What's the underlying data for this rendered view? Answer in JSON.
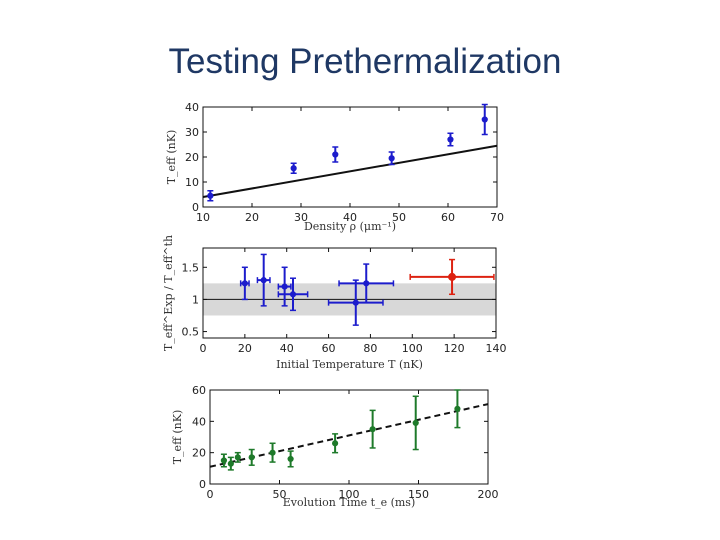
{
  "slide": {
    "title": "Testing Prethermalization"
  },
  "colors": {
    "blue": "#1c1ccc",
    "red": "#dd2211",
    "green": "#1e7a2a",
    "band": "#d8d8d8"
  },
  "chart_data": [
    {
      "type": "scatter",
      "xlabel": "Density ρ (μm⁻¹)",
      "ylabel": "T_eff (nK)",
      "xlim": [
        10,
        70
      ],
      "ylim": [
        0,
        40
      ],
      "xticks": [
        10,
        20,
        30,
        40,
        50,
        60,
        70
      ],
      "yticks": [
        0,
        10,
        20,
        30,
        40
      ],
      "series": [
        {
          "name": "data",
          "color": "#1c1ccc",
          "points": [
            {
              "x": 11.5,
              "y": 4.5,
              "err": 2
            },
            {
              "x": 28.5,
              "y": 15.5,
              "err": 2
            },
            {
              "x": 37,
              "y": 21,
              "err": 3
            },
            {
              "x": 48.5,
              "y": 19.5,
              "err": 2.5
            },
            {
              "x": 60.5,
              "y": 27,
              "err": 2.5
            },
            {
              "x": 67.5,
              "y": 35,
              "err": 6
            }
          ]
        }
      ],
      "fit_line": {
        "x": [
          10,
          70
        ],
        "y": [
          4,
          24.5
        ]
      }
    },
    {
      "type": "scatter",
      "xlabel": "Initial Temperature T (nK)",
      "ylabel": "T_eff^Exp / T_eff^th",
      "xlim": [
        0,
        140
      ],
      "ylim": [
        0.4,
        1.8
      ],
      "xticks": [
        0,
        20,
        40,
        60,
        80,
        100,
        120,
        140
      ],
      "yticks": [
        0.5,
        1,
        1.5
      ],
      "band": [
        0.75,
        1.25
      ],
      "ref_line": 1,
      "series": [
        {
          "name": "blue",
          "color": "#1c1ccc",
          "points": [
            {
              "x": 20,
              "y": 1.25,
              "xerr": 2,
              "yerr": 0.25
            },
            {
              "x": 29,
              "y": 1.3,
              "xerr": 3,
              "yerr": 0.4
            },
            {
              "x": 39,
              "y": 1.2,
              "xerr": 3,
              "yerr": 0.3
            },
            {
              "x": 43,
              "y": 1.08,
              "xerr": 7,
              "yerr": 0.25
            },
            {
              "x": 73,
              "y": 0.95,
              "xerr": 13,
              "yerr": 0.35
            },
            {
              "x": 78,
              "y": 1.25,
              "xerr": 13,
              "yerr": 0.3
            }
          ]
        },
        {
          "name": "red",
          "color": "#dd2211",
          "points": [
            {
              "x": 119,
              "y": 1.35,
              "xerr": 20,
              "yerr": 0.27
            }
          ]
        }
      ]
    },
    {
      "type": "scatter",
      "xlabel": "Evolution Time t_e (ms)",
      "ylabel": "T_eff (nK)",
      "xlim": [
        0,
        200
      ],
      "ylim": [
        0,
        60
      ],
      "xticks": [
        0,
        50,
        100,
        150,
        200
      ],
      "yticks": [
        0,
        20,
        40,
        60
      ],
      "series": [
        {
          "name": "data",
          "color": "#1e7a2a",
          "points": [
            {
              "x": 10,
              "y": 15,
              "err": 4
            },
            {
              "x": 15,
              "y": 13,
              "err": 4
            },
            {
              "x": 20,
              "y": 17,
              "err": 3
            },
            {
              "x": 30,
              "y": 17,
              "err": 5
            },
            {
              "x": 45,
              "y": 20,
              "err": 6
            },
            {
              "x": 58,
              "y": 16,
              "err": 5
            },
            {
              "x": 90,
              "y": 26,
              "err": 6
            },
            {
              "x": 117,
              "y": 35,
              "err": 12
            },
            {
              "x": 148,
              "y": 39,
              "err": 17
            },
            {
              "x": 178,
              "y": 48,
              "err": 12
            }
          ]
        }
      ],
      "fit_line": {
        "x": [
          0,
          200
        ],
        "y": [
          11,
          51
        ],
        "style": "dashed"
      }
    }
  ]
}
